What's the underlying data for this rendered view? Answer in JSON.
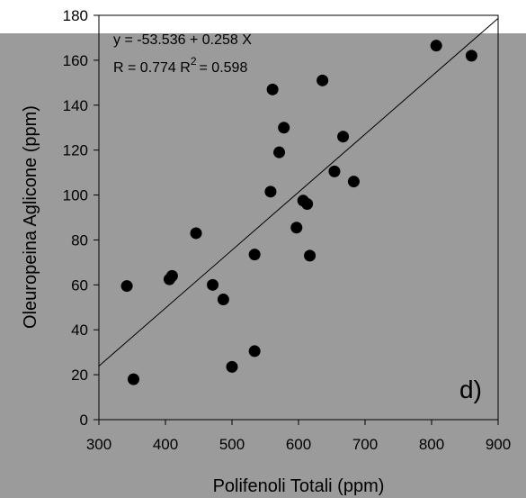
{
  "chart_data": {
    "type": "scatter",
    "title": "",
    "xlabel": "Polifenoli Totali (ppm)",
    "ylabel": "Oleuropeina Aglicone (ppm)",
    "xlim": [
      300,
      900
    ],
    "ylim": [
      0,
      180
    ],
    "xticks": [
      "300",
      "400",
      "500",
      "600",
      "700",
      "800",
      "900"
    ],
    "yticks": [
      "0",
      "20",
      "40",
      "60",
      "80",
      "100",
      "120",
      "140",
      "160",
      "180"
    ],
    "x": [
      342,
      352,
      406,
      410,
      446,
      471,
      487,
      500,
      534,
      534,
      558,
      561,
      571,
      578,
      597,
      607,
      613,
      617,
      636,
      654,
      667,
      683,
      807,
      860
    ],
    "y": [
      59.5,
      18,
      62.5,
      64,
      83,
      60,
      53.5,
      23.5,
      73.5,
      30.5,
      101.5,
      147,
      119,
      130,
      85.5,
      97.5,
      96,
      73,
      151,
      110.5,
      126,
      106,
      166.5,
      162
    ],
    "regression": {
      "intercept": -53.536,
      "slope": 0.258
    },
    "annotations": {
      "equation": "y = -53.536 + 0.258 X",
      "r_label": "R = 0.774  R",
      "r2_exponent": "2",
      "r2_value": "= 0.598",
      "panel_label": "d)"
    },
    "marker_color": "#000000",
    "background_color": "#9b9b9b",
    "grid": false
  }
}
